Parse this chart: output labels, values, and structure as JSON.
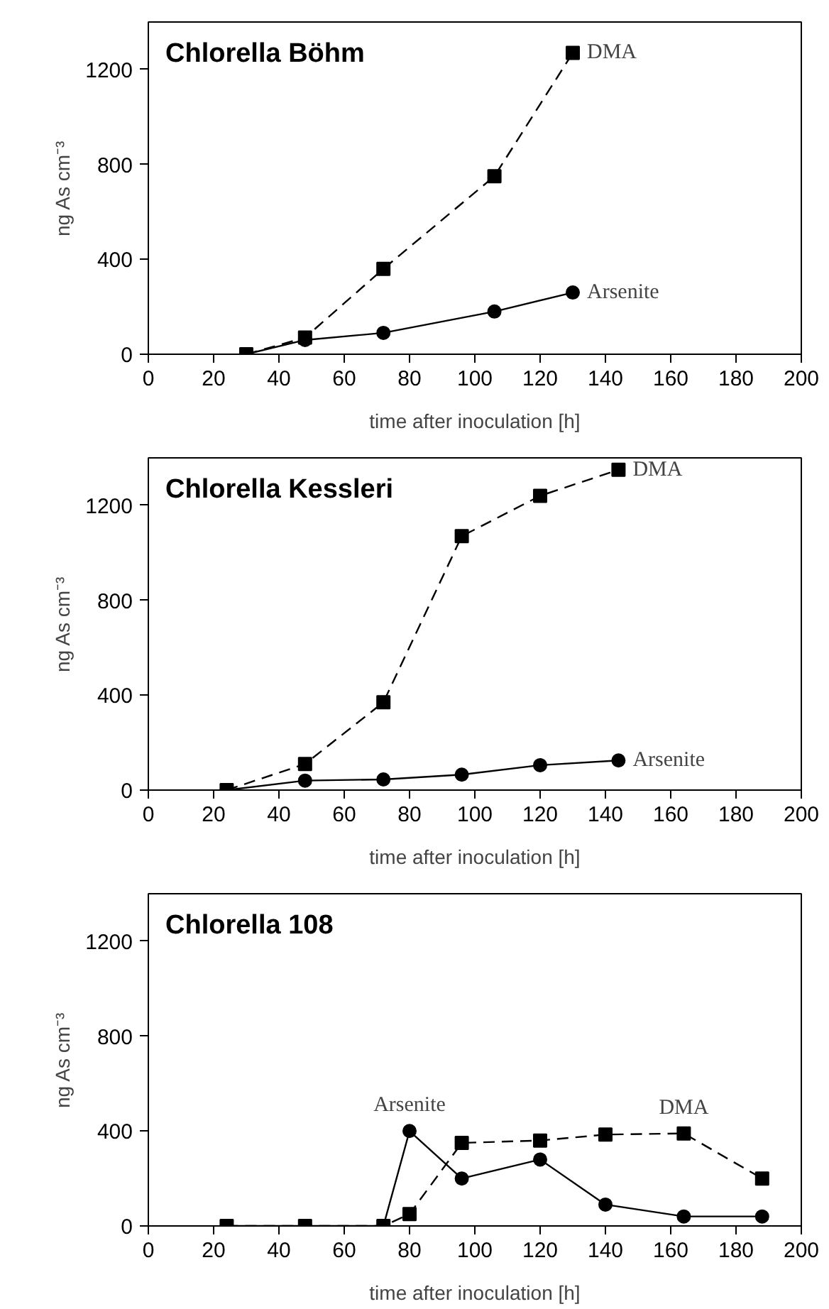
{
  "chart_data": [
    {
      "type": "line",
      "title": "Chlorella Böhm",
      "xlabel": "time after inoculation [h]",
      "ylabel": "ng As cm⁻³",
      "xlim": [
        0,
        200
      ],
      "ylim": [
        0,
        1400
      ],
      "xticks": [
        0,
        20,
        40,
        60,
        80,
        100,
        120,
        140,
        160,
        180,
        200
      ],
      "yticks": [
        0,
        400,
        800,
        1200
      ],
      "grid": false,
      "legend": false,
      "series": [
        {
          "name": "DMA",
          "color": "#000000",
          "marker": "square",
          "line_style": "dashed",
          "x": [
            30,
            48,
            72,
            106,
            130
          ],
          "values": [
            0,
            70,
            360,
            750,
            1270
          ]
        },
        {
          "name": "Arsenite",
          "color": "#000000",
          "marker": "circle",
          "line_style": "solid",
          "x": [
            30,
            48,
            72,
            106,
            130
          ],
          "values": [
            0,
            60,
            90,
            180,
            260
          ]
        }
      ]
    },
    {
      "type": "line",
      "title": "Chlorella Kessleri",
      "xlabel": "time after inoculation [h]",
      "ylabel": "ng As cm⁻³",
      "xlim": [
        0,
        200
      ],
      "ylim": [
        0,
        1400
      ],
      "xticks": [
        0,
        20,
        40,
        60,
        80,
        100,
        120,
        140,
        160,
        180,
        200
      ],
      "yticks": [
        0,
        400,
        800,
        1200
      ],
      "grid": false,
      "legend": false,
      "series": [
        {
          "name": "DMA",
          "color": "#000000",
          "marker": "square",
          "line_style": "dashed",
          "x": [
            24,
            48,
            72,
            96,
            120,
            144
          ],
          "values": [
            0,
            110,
            370,
            1070,
            1240,
            1350
          ]
        },
        {
          "name": "Arsenite",
          "color": "#000000",
          "marker": "circle",
          "line_style": "solid",
          "x": [
            24,
            48,
            72,
            96,
            120,
            144
          ],
          "values": [
            0,
            40,
            45,
            65,
            105,
            125
          ]
        }
      ]
    },
    {
      "type": "line",
      "title": "Chlorella 108",
      "xlabel": "time after inoculation [h]",
      "ylabel": "ng As cm⁻³",
      "xlim": [
        0,
        200
      ],
      "ylim": [
        0,
        1400
      ],
      "xticks": [
        0,
        20,
        40,
        60,
        80,
        100,
        120,
        140,
        160,
        180,
        200
      ],
      "yticks": [
        0,
        400,
        800,
        1200
      ],
      "grid": false,
      "legend": false,
      "series": [
        {
          "name": "Arsenite",
          "color": "#000000",
          "marker": "circle",
          "line_style": "solid",
          "x": [
            24,
            48,
            72,
            80,
            96,
            120,
            140,
            164,
            188
          ],
          "values": [
            0,
            0,
            0,
            400,
            200,
            280,
            90,
            40,
            40
          ]
        },
        {
          "name": "DMA",
          "color": "#000000",
          "marker": "square",
          "line_style": "dashed",
          "x": [
            24,
            48,
            72,
            80,
            96,
            120,
            140,
            164,
            188
          ],
          "values": [
            0,
            0,
            0,
            50,
            350,
            360,
            385,
            390,
            200
          ]
        }
      ]
    }
  ]
}
